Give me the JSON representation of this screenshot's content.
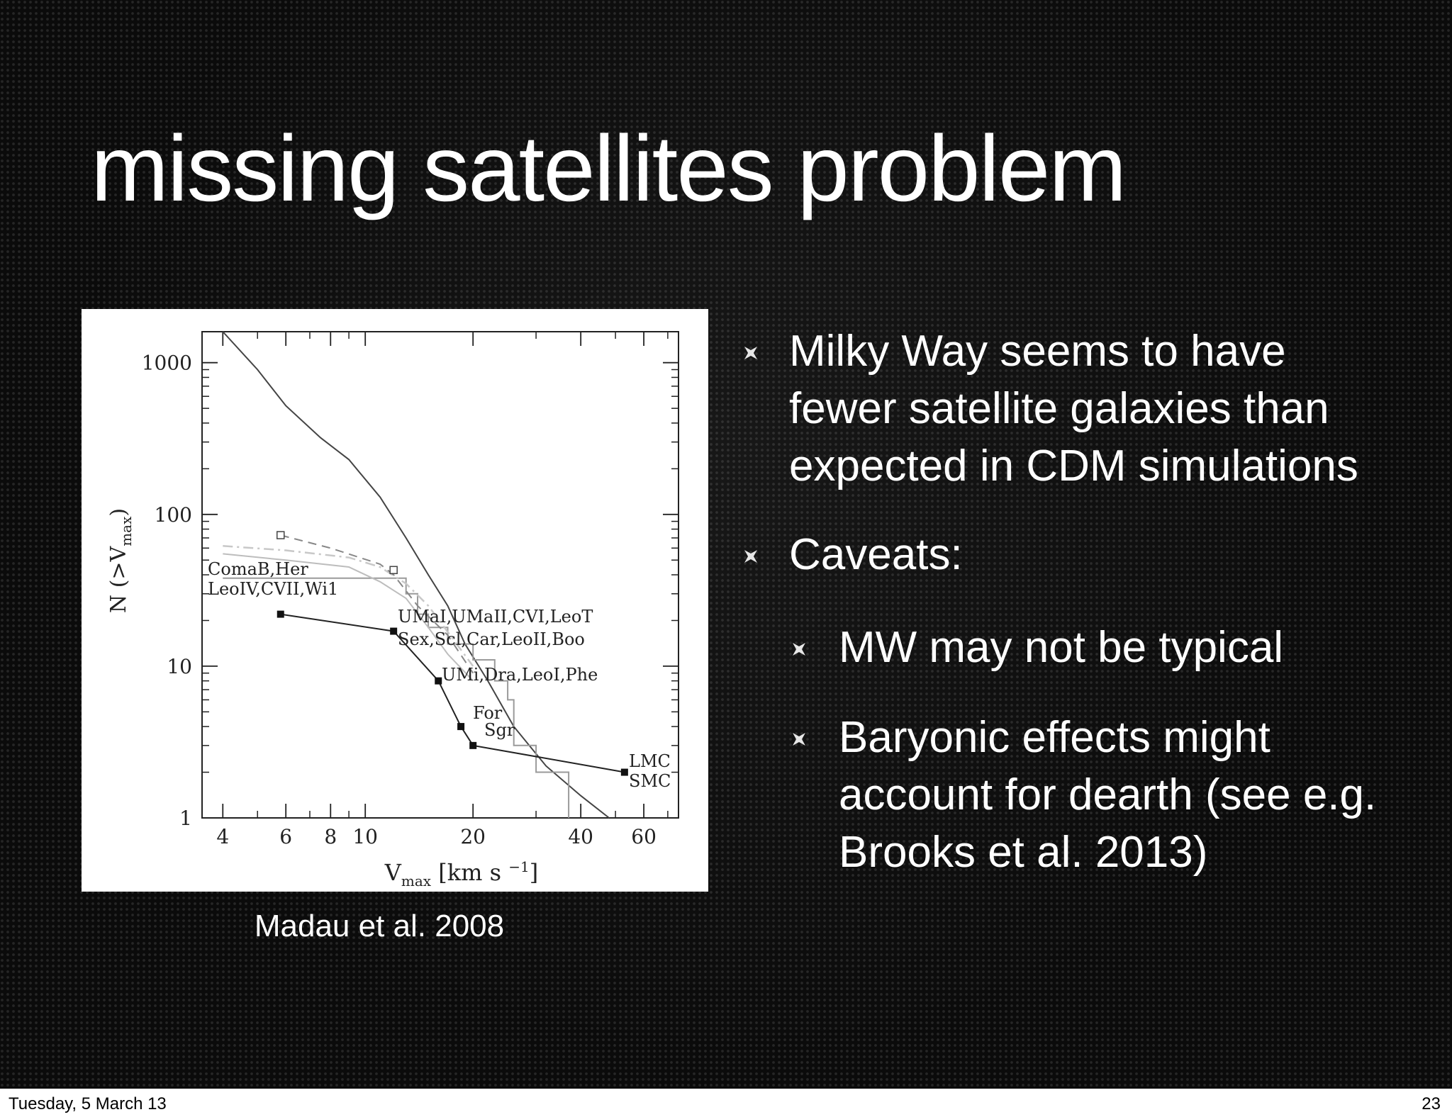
{
  "slide": {
    "title": "missing satellites problem",
    "caption": "Madau et al. 2008",
    "bullets": [
      {
        "text": "Milky Way seems to have fewer satellite galaxies than expected in CDM simulations",
        "level": 1
      },
      {
        "text": "Caveats:",
        "level": 1
      },
      {
        "text": "MW may not be typical",
        "level": 2
      },
      {
        "text": "Baryonic effects might account for dearth (see e.g. Brooks et al. 2013)",
        "level": 2
      }
    ]
  },
  "footer": {
    "date": "Tuesday, 5 March 13",
    "page": "23"
  },
  "colors": {
    "background": "#0b0b0b",
    "text": "#ffffff",
    "footer_bg": "#ffffff"
  },
  "figure": {
    "type": "line",
    "xscale": "log",
    "yscale": "log",
    "xlim": [
      3.5,
      75
    ],
    "ylim": [
      1,
      1600
    ],
    "x_ticks": [
      "4",
      "6",
      "8",
      "10",
      "20",
      "40",
      "60"
    ],
    "y_ticks": [
      "1",
      "10",
      "100",
      "1000"
    ],
    "x_label": {
      "main": "V",
      "sub": "max",
      "unit": "[km s",
      "sup": "−1",
      "end": "]"
    },
    "y_label": {
      "main": "N (>V",
      "sub": "max",
      "end": ")"
    },
    "point_labels": [
      {
        "lines": [
          "ComaB,Her",
          "LeoIV,CVII,Wi1"
        ]
      },
      {
        "lines": [
          "UMaI,UMaII,CVI,LeoT",
          "Sex,Scl,Car,LeoII,Boo"
        ]
      },
      {
        "lines": [
          "UMi,Dra,LeoI,Phe"
        ]
      },
      {
        "lines": [
          "For",
          "Sgr"
        ]
      },
      {
        "lines": [
          "LMC",
          "SMC"
        ]
      }
    ],
    "series": [
      {
        "style": "simulation-solid",
        "points": [
          [
            4,
            1600
          ],
          [
            5,
            900
          ],
          [
            6,
            520
          ],
          [
            7.5,
            320
          ],
          [
            9,
            230
          ],
          [
            11,
            130
          ],
          [
            13,
            70
          ],
          [
            15,
            40
          ],
          [
            17,
            25
          ],
          [
            19,
            14
          ],
          [
            22,
            8
          ],
          [
            26,
            4
          ],
          [
            32,
            2.2
          ],
          [
            40,
            1.4
          ],
          [
            48,
            1
          ]
        ]
      },
      {
        "style": "observed-steps",
        "points": [
          [
            4,
            38
          ],
          [
            13,
            38
          ],
          [
            13,
            30
          ],
          [
            14,
            30
          ],
          [
            14,
            22
          ],
          [
            15,
            22
          ],
          [
            15,
            18
          ],
          [
            17,
            18
          ],
          [
            17,
            14
          ],
          [
            20,
            14
          ],
          [
            20,
            11
          ],
          [
            23,
            11
          ],
          [
            23,
            8
          ],
          [
            25,
            8
          ],
          [
            25,
            6
          ],
          [
            26,
            6
          ],
          [
            26,
            3
          ],
          [
            30,
            3
          ],
          [
            30,
            2
          ],
          [
            37,
            2
          ],
          [
            37,
            1
          ]
        ]
      },
      {
        "style": "observed-dashdot",
        "points": [
          [
            4,
            62
          ],
          [
            6,
            58
          ],
          [
            9,
            52
          ],
          [
            11,
            45
          ],
          [
            13,
            35
          ],
          [
            15,
            25
          ],
          [
            18,
            14
          ],
          [
            20,
            10
          ]
        ]
      },
      {
        "style": "observed-grey",
        "points": [
          [
            4,
            55
          ],
          [
            6,
            50
          ],
          [
            9,
            45
          ],
          [
            11,
            36
          ],
          [
            13,
            28
          ],
          [
            15,
            18
          ],
          [
            17,
            12
          ],
          [
            20,
            8
          ]
        ]
      },
      {
        "style": "observed-dashed",
        "points": [
          [
            5.8,
            73
          ],
          [
            8,
            60
          ],
          [
            11,
            47
          ],
          [
            12,
            40
          ],
          [
            14,
            25
          ],
          [
            17,
            16
          ],
          [
            20,
            9
          ]
        ]
      },
      {
        "style": "corrected-markers",
        "markers": true,
        "points": [
          [
            5.8,
            22
          ],
          [
            12,
            17
          ],
          [
            16,
            8
          ],
          [
            18.5,
            4
          ],
          [
            20,
            3
          ],
          [
            53,
            2
          ]
        ]
      }
    ],
    "open_markers": [
      [
        5.8,
        73
      ],
      [
        12,
        43
      ]
    ]
  }
}
